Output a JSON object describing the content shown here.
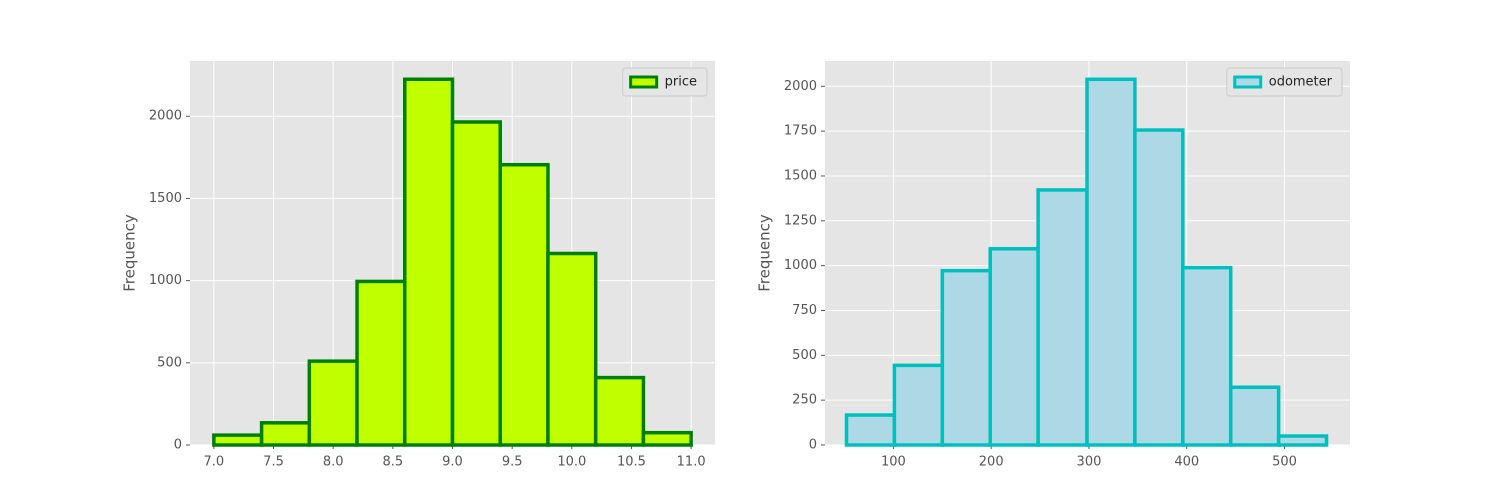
{
  "chart_data": [
    {
      "type": "histogram",
      "ylabel": "Frequency",
      "legend": "upper right",
      "grid": true,
      "bins": [
        7.0,
        7.4,
        7.8,
        8.2,
        8.6,
        9.0,
        9.4,
        9.8,
        10.2,
        10.6,
        11.0
      ],
      "series": [
        {
          "name": "price",
          "color": "#bfff00",
          "edgecolor": "#008000",
          "values": [
            60,
            135,
            510,
            995,
            2225,
            1965,
            1705,
            1165,
            410,
            75
          ]
        }
      ],
      "xlim": [
        6.8,
        11.2
      ],
      "xticks": [
        {
          "value": 7,
          "label": "7.0"
        },
        7.5,
        {
          "value": 8,
          "label": "8.0"
        },
        8.5,
        {
          "value": 9,
          "label": "9.0"
        },
        9.5,
        {
          "value": 10,
          "label": "10.0"
        },
        10.5,
        {
          "value": 11,
          "label": "11.0"
        }
      ],
      "ylim": [
        0,
        2336
      ],
      "yticks": [
        0,
        500,
        1000,
        1500,
        2000
      ]
    },
    {
      "type": "histogram",
      "ylabel": "Frequency",
      "legend": "upper right",
      "grid": true,
      "bins": [
        52,
        101,
        150,
        199,
        248,
        298,
        347,
        396,
        445,
        494,
        543
      ],
      "series": [
        {
          "name": "odometer",
          "color": "#add8e6",
          "edgecolor": "#00bfbf",
          "values": [
            167,
            444,
            972,
            1094,
            1422,
            2039,
            1756,
            989,
            322,
            50
          ]
        }
      ],
      "xlim": [
        30,
        567
      ],
      "xticks": [
        100,
        200,
        300,
        400,
        500
      ],
      "ylim": [
        0,
        2141
      ],
      "yticks": [
        0,
        250,
        500,
        750,
        1000,
        1250,
        1500,
        1750,
        2000
      ]
    }
  ]
}
